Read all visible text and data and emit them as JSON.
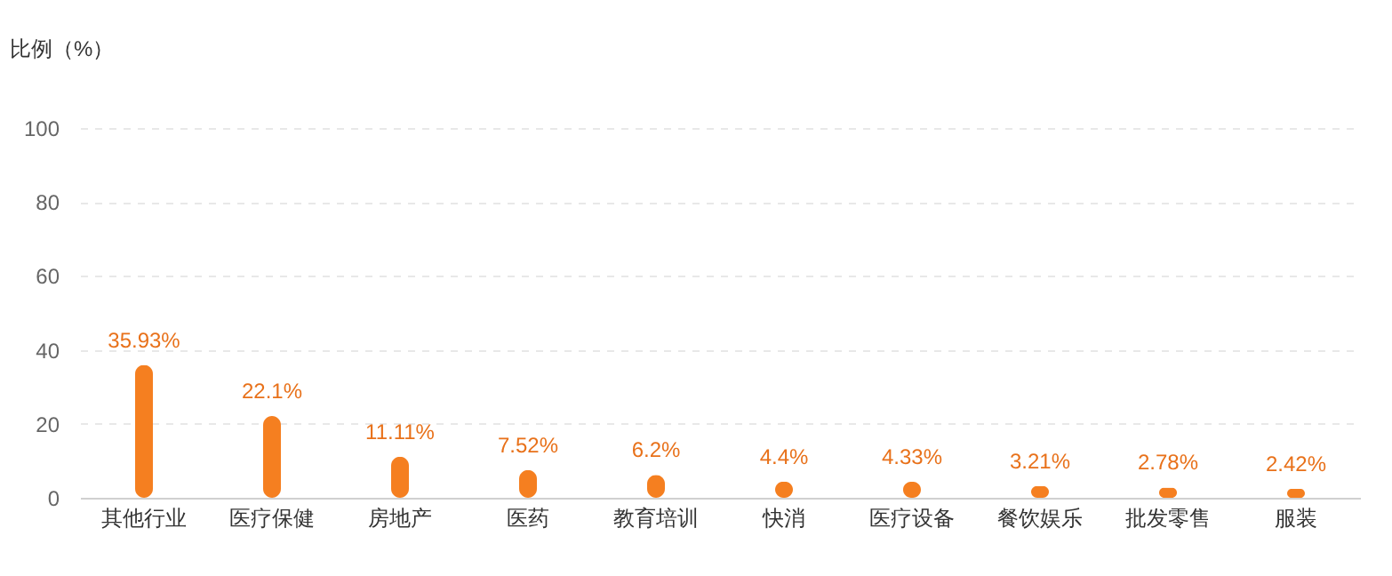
{
  "chart_data": {
    "type": "bar",
    "ylabel": "比例（%）",
    "categories": [
      "其他行业",
      "医疗保健",
      "房地产",
      "医药",
      "教育培训",
      "快消",
      "医疗设备",
      "餐饮娱乐",
      "批发零售",
      "服装"
    ],
    "values": [
      35.93,
      22.1,
      11.11,
      7.52,
      6.2,
      4.4,
      4.33,
      3.21,
      2.78,
      2.42
    ],
    "value_labels": [
      "35.93%",
      "22.1%",
      "11.11%",
      "7.52%",
      "6.2%",
      "4.4%",
      "4.33%",
      "3.21%",
      "2.78%",
      "2.42%"
    ],
    "color": "#f57f20",
    "ylim": [
      0,
      100
    ],
    "yticks": [
      0,
      20,
      40,
      60,
      80,
      100
    ],
    "grid": "y"
  }
}
